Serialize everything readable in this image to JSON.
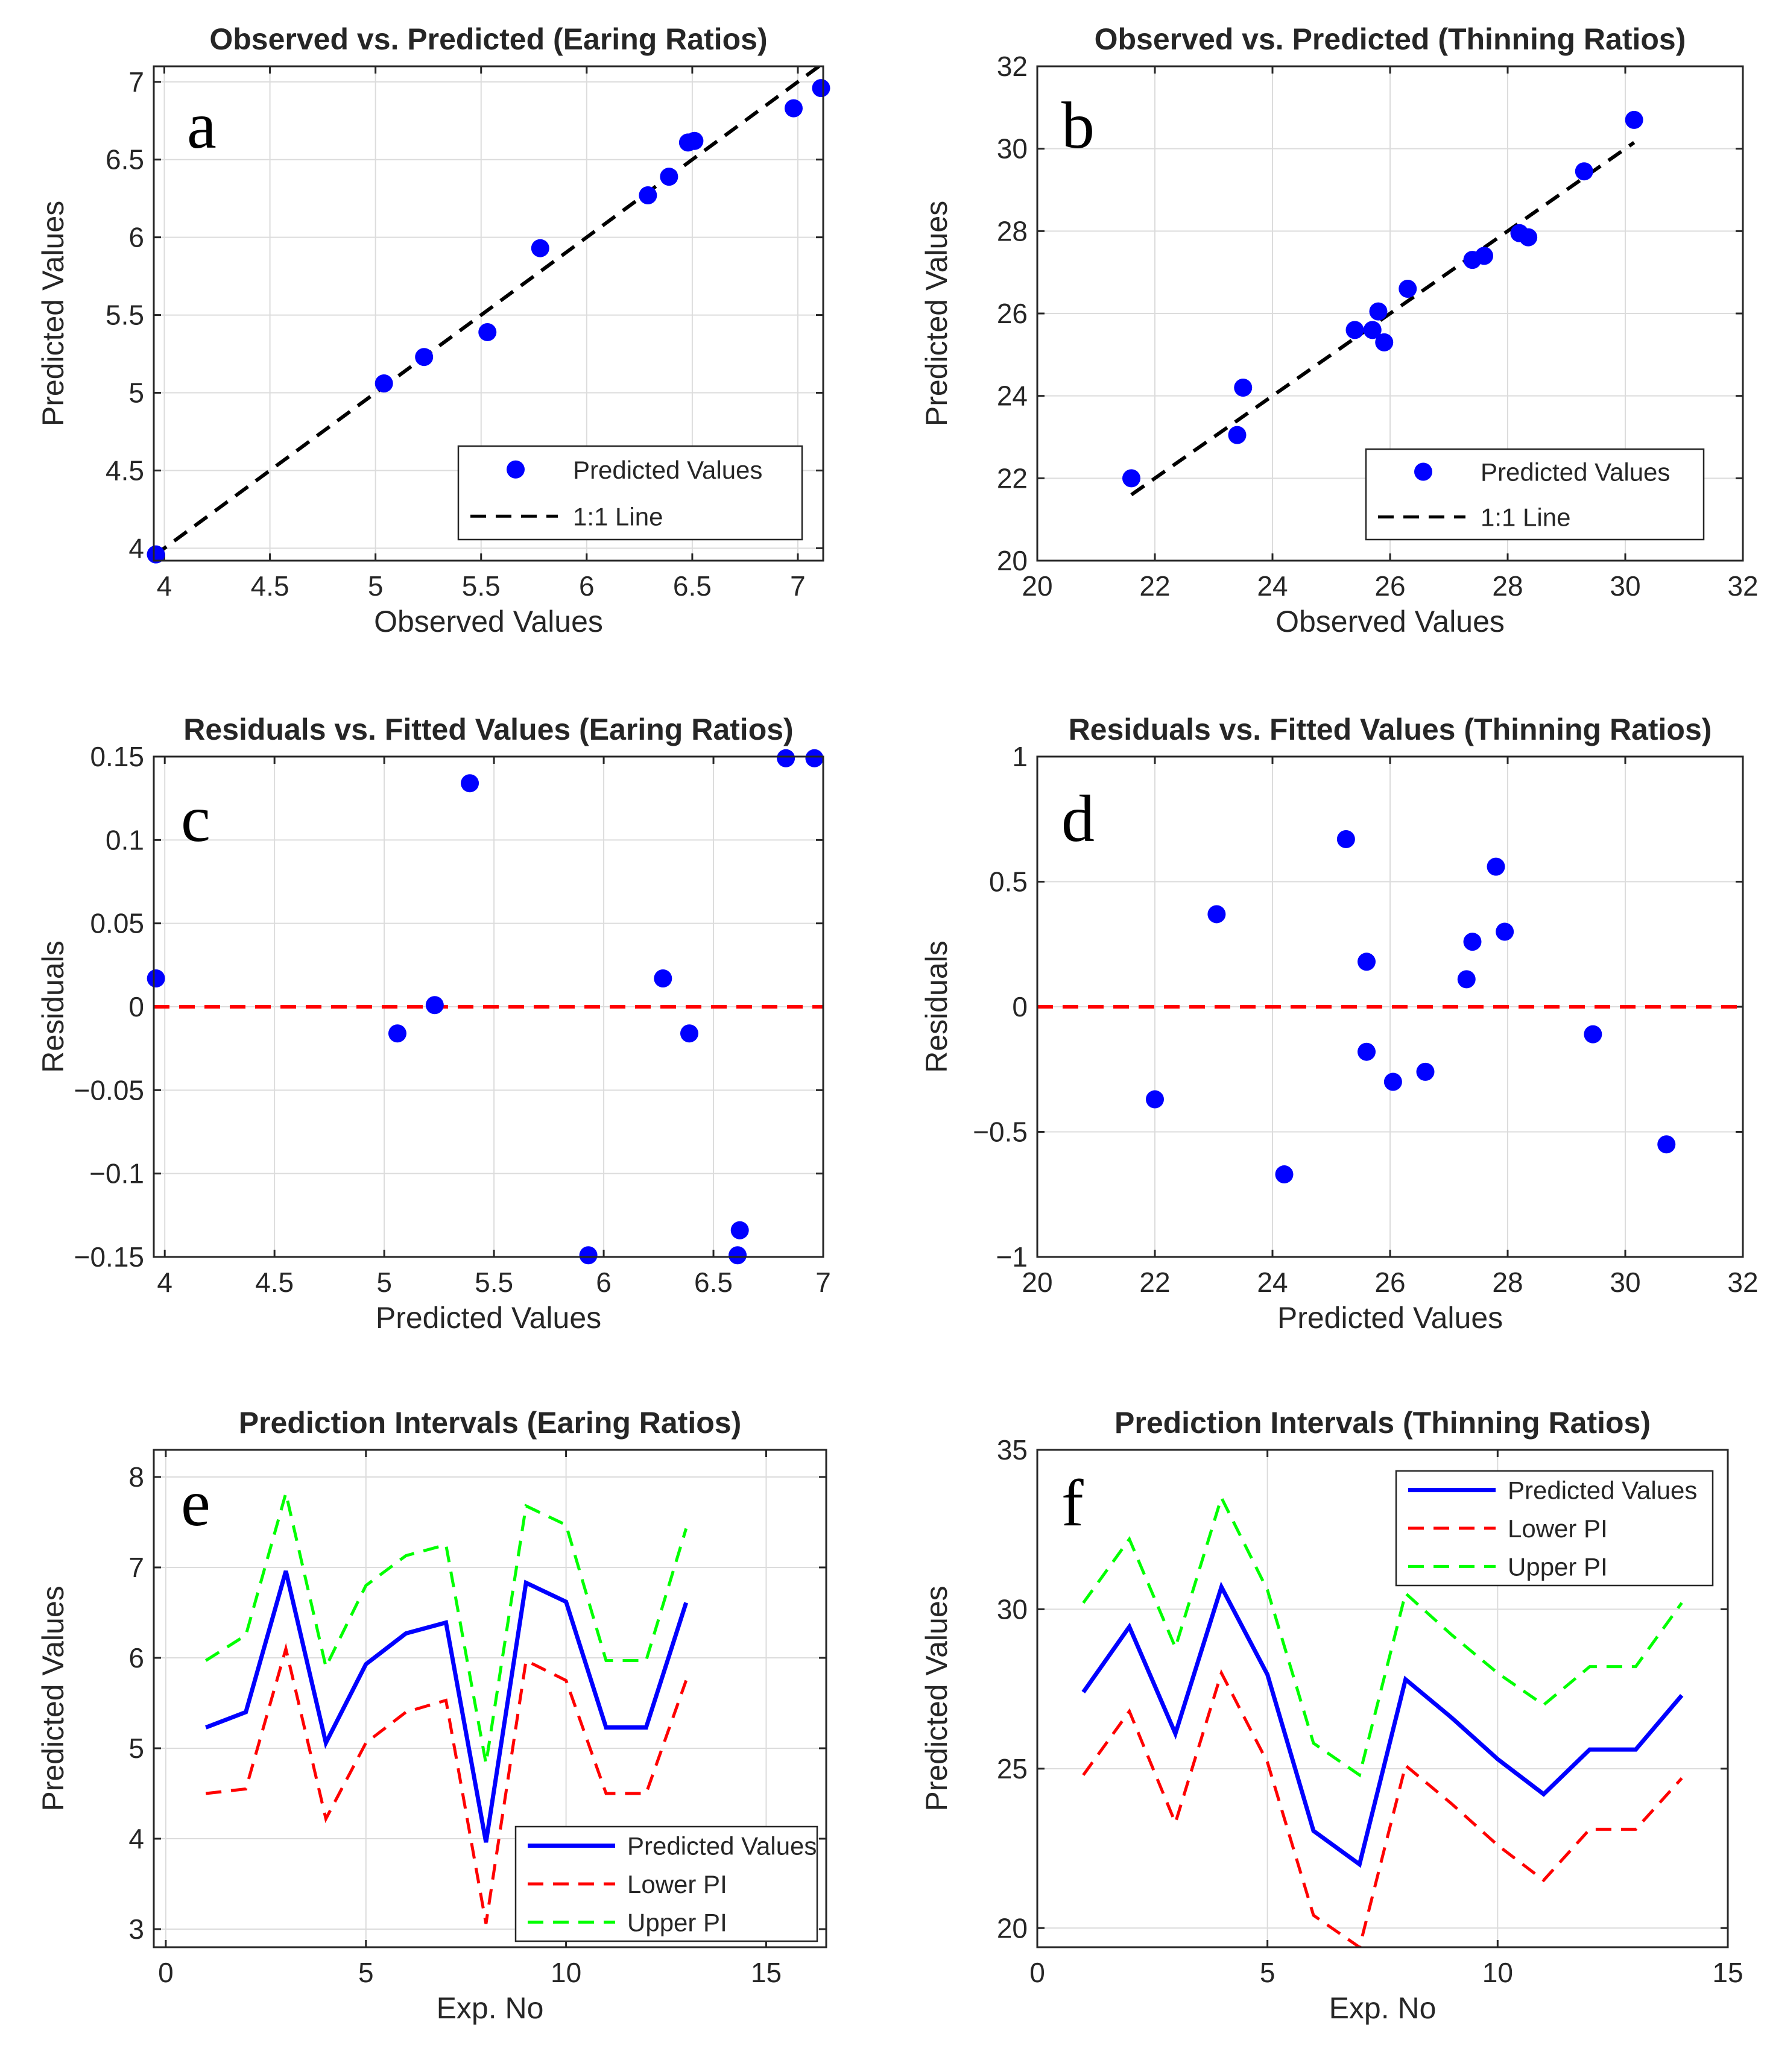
{
  "chart_data": [
    {
      "panel": "a",
      "type": "scatter",
      "title": "Observed vs. Predicted (Earing Ratios)",
      "xlabel": "Observed Values",
      "ylabel": "Predicted Values",
      "xlim": [
        3.95,
        7.12
      ],
      "ylim": [
        3.92,
        7.1
      ],
      "xticks": [
        4,
        4.5,
        5,
        5.5,
        6,
        6.5,
        7
      ],
      "xtick_labels": [
        "4",
        "4.5",
        "5",
        "5.5",
        "6",
        "6.5",
        "7"
      ],
      "yticks": [
        4,
        4.5,
        5,
        5.5,
        6,
        6.5,
        7
      ],
      "ytick_labels": [
        "4",
        "4.5",
        "5",
        "5.5",
        "6",
        "6.5",
        "7"
      ],
      "series": [
        {
          "name": "Predicted Values",
          "kind": "points",
          "color": "#0000ff",
          "x": [
            3.96,
            5.04,
            5.23,
            5.53,
            5.78,
            6.29,
            6.39,
            6.48,
            6.51,
            6.98,
            7.11
          ],
          "y": [
            3.96,
            5.06,
            5.23,
            5.39,
            5.93,
            6.27,
            6.39,
            6.61,
            6.62,
            6.83,
            6.96
          ]
        },
        {
          "name": "1:1 Line",
          "kind": "line",
          "dash": "dash",
          "color": "#000000",
          "x": [
            3.95,
            7.12
          ],
          "y": [
            3.95,
            7.12
          ]
        }
      ],
      "legend": {
        "position": "bottom-right",
        "entries": [
          "Predicted Values",
          "1:1 Line"
        ]
      }
    },
    {
      "panel": "b",
      "type": "scatter",
      "title": "Observed vs. Predicted (Thinning Ratios)",
      "xlabel": "Observed Values",
      "ylabel": "Predicted Values",
      "xlim": [
        20,
        32
      ],
      "ylim": [
        20,
        32
      ],
      "xticks": [
        20,
        22,
        24,
        26,
        28,
        30,
        32
      ],
      "xtick_labels": [
        "20",
        "22",
        "24",
        "26",
        "28",
        "30",
        "32"
      ],
      "yticks": [
        20,
        22,
        24,
        26,
        28,
        30,
        32
      ],
      "ytick_labels": [
        "20",
        "22",
        "24",
        "26",
        "28",
        "30",
        "32"
      ],
      "series": [
        {
          "name": "Predicted Values",
          "kind": "points",
          "color": "#0000ff",
          "x": [
            21.6,
            23.4,
            23.5,
            25.4,
            25.7,
            25.8,
            25.9,
            26.3,
            27.4,
            27.6,
            28.2,
            28.35,
            29.3,
            30.15
          ],
          "y": [
            22.0,
            23.05,
            24.2,
            25.6,
            25.6,
            26.05,
            25.3,
            26.6,
            27.3,
            27.4,
            27.95,
            27.85,
            29.45,
            30.7
          ]
        },
        {
          "name": "1:1 Line",
          "kind": "line",
          "dash": "dash",
          "color": "#000000",
          "x": [
            21.6,
            30.15
          ],
          "y": [
            21.6,
            30.15
          ]
        }
      ],
      "legend": {
        "position": "bottom-right",
        "entries": [
          "Predicted Values",
          "1:1 Line"
        ]
      }
    },
    {
      "panel": "c",
      "type": "scatter",
      "title": "Residuals vs. Fitted Values (Earing Ratios)",
      "xlabel": "Predicted Values",
      "ylabel": "Residuals",
      "xlim": [
        3.95,
        7.0
      ],
      "ylim": [
        -0.15,
        0.15
      ],
      "xticks": [
        4,
        4.5,
        5,
        5.5,
        6,
        6.5,
        7
      ],
      "xtick_labels": [
        "4",
        "4.5",
        "5",
        "5.5",
        "6",
        "6.5",
        "7"
      ],
      "yticks": [
        -0.15,
        -0.1,
        -0.05,
        0,
        0.05,
        0.1,
        0.15
      ],
      "ytick_labels": [
        "−0.15",
        "−0.1",
        "−0.05",
        "0",
        "0.05",
        "0.1",
        "0.15"
      ],
      "series": [
        {
          "name": "Residuals",
          "kind": "points",
          "color": "#0000ff",
          "x": [
            3.96,
            5.06,
            5.23,
            5.39,
            5.93,
            6.27,
            6.39,
            6.61,
            6.62,
            6.83,
            6.96
          ],
          "y": [
            0.017,
            -0.016,
            0.001,
            0.134,
            -0.149,
            0.017,
            -0.016,
            -0.149,
            -0.134,
            0.149,
            0.149
          ]
        },
        {
          "name": "Zero",
          "kind": "line",
          "dash": "dash",
          "color": "#ff0000",
          "x": [
            3.95,
            7.0
          ],
          "y": [
            0,
            0
          ]
        }
      ]
    },
    {
      "panel": "d",
      "type": "scatter",
      "title": "Residuals vs. Fitted Values (Thinning Ratios)",
      "xlabel": "Predicted Values",
      "ylabel": "Residuals",
      "xlim": [
        20,
        32
      ],
      "ylim": [
        -1,
        1
      ],
      "xticks": [
        20,
        22,
        24,
        26,
        28,
        30,
        32
      ],
      "xtick_labels": [
        "20",
        "22",
        "24",
        "26",
        "28",
        "30",
        "32"
      ],
      "yticks": [
        -1,
        -0.5,
        0,
        0.5,
        1
      ],
      "ytick_labels": [
        "−1",
        "−0.5",
        "0",
        "0.5",
        "1"
      ],
      "series": [
        {
          "name": "Residuals",
          "kind": "points",
          "color": "#0000ff",
          "x": [
            22.0,
            23.05,
            24.2,
            25.25,
            25.6,
            25.6,
            26.05,
            26.6,
            27.3,
            27.4,
            27.8,
            27.95,
            29.45,
            30.7
          ],
          "y": [
            -0.37,
            0.37,
            -0.67,
            0.67,
            0.18,
            -0.18,
            -0.3,
            -0.26,
            0.11,
            0.26,
            0.56,
            0.3,
            -0.11,
            -0.55
          ]
        },
        {
          "name": "Zero",
          "kind": "line",
          "dash": "dash",
          "color": "#ff0000",
          "x": [
            20,
            32
          ],
          "y": [
            0,
            0
          ]
        }
      ]
    },
    {
      "panel": "e",
      "type": "line",
      "title": "Prediction Intervals (Earing Ratios)",
      "xlabel": "Exp. No",
      "ylabel": "Predicted Values",
      "xlim": [
        -0.3,
        16.5
      ],
      "ylim": [
        2.8,
        8.3
      ],
      "xticks": [
        0,
        5,
        10,
        15
      ],
      "xtick_labels": [
        "0",
        "5",
        "10",
        "15"
      ],
      "yticks": [
        3,
        4,
        5,
        6,
        7,
        8
      ],
      "ytick_labels": [
        "3",
        "4",
        "5",
        "6",
        "7",
        "8"
      ],
      "x": [
        1,
        2,
        3,
        4,
        5,
        6,
        7,
        8,
        9,
        10,
        11,
        12,
        13
      ],
      "series": [
        {
          "name": "Predicted Values",
          "dash": "solid",
          "color": "#0000ff",
          "values": [
            5.23,
            5.4,
            6.96,
            5.06,
            5.93,
            6.27,
            6.39,
            3.96,
            6.83,
            6.62,
            5.23,
            5.23,
            6.61
          ]
        },
        {
          "name": "Lower PI",
          "dash": "dash",
          "color": "#ff0000",
          "values": [
            4.5,
            4.55,
            6.1,
            4.22,
            5.06,
            5.4,
            5.53,
            3.06,
            5.97,
            5.75,
            4.5,
            4.5,
            5.75
          ]
        },
        {
          "name": "Upper PI",
          "dash": "dash",
          "color": "#00ff00",
          "values": [
            5.97,
            6.25,
            7.82,
            5.9,
            6.8,
            7.13,
            7.25,
            4.83,
            7.68,
            7.47,
            5.97,
            5.97,
            7.43
          ]
        }
      ],
      "legend": {
        "position": "bottom-right",
        "entries": [
          "Predicted Values",
          "Lower PI",
          "Upper PI"
        ]
      }
    },
    {
      "panel": "f",
      "type": "line",
      "title": "Prediction Intervals (Thinning Ratios)",
      "xlabel": "Exp. No",
      "ylabel": "Predicted Values",
      "xlim": [
        0,
        15
      ],
      "ylim": [
        19.4,
        35
      ],
      "xticks": [
        0,
        5,
        10,
        15
      ],
      "xtick_labels": [
        "0",
        "5",
        "10",
        "15"
      ],
      "yticks": [
        20,
        25,
        30,
        35
      ],
      "ytick_labels": [
        "20",
        "25",
        "30",
        "35"
      ],
      "x": [
        1,
        2,
        3,
        4,
        5,
        6,
        7,
        8,
        9,
        10,
        11,
        12,
        13,
        14
      ],
      "series": [
        {
          "name": "Predicted Values",
          "dash": "solid",
          "color": "#0000ff",
          "values": [
            27.4,
            29.45,
            26.1,
            30.7,
            27.95,
            23.05,
            22.0,
            27.8,
            26.6,
            25.3,
            24.2,
            25.6,
            25.6,
            27.3
          ]
        },
        {
          "name": "Lower PI",
          "dash": "dash",
          "color": "#ff0000",
          "values": [
            24.8,
            26.8,
            23.3,
            28.0,
            25.2,
            20.4,
            19.4,
            25.1,
            23.9,
            22.6,
            21.5,
            23.1,
            23.1,
            24.7
          ]
        },
        {
          "name": "Upper PI",
          "dash": "dash",
          "color": "#00ff00",
          "values": [
            30.2,
            32.2,
            28.8,
            33.5,
            30.6,
            25.8,
            24.8,
            30.5,
            29.2,
            28.0,
            27.0,
            28.2,
            28.2,
            30.2
          ]
        }
      ],
      "legend": {
        "position": "top-right",
        "entries": [
          "Predicted Values",
          "Lower PI",
          "Upper PI"
        ]
      }
    }
  ]
}
